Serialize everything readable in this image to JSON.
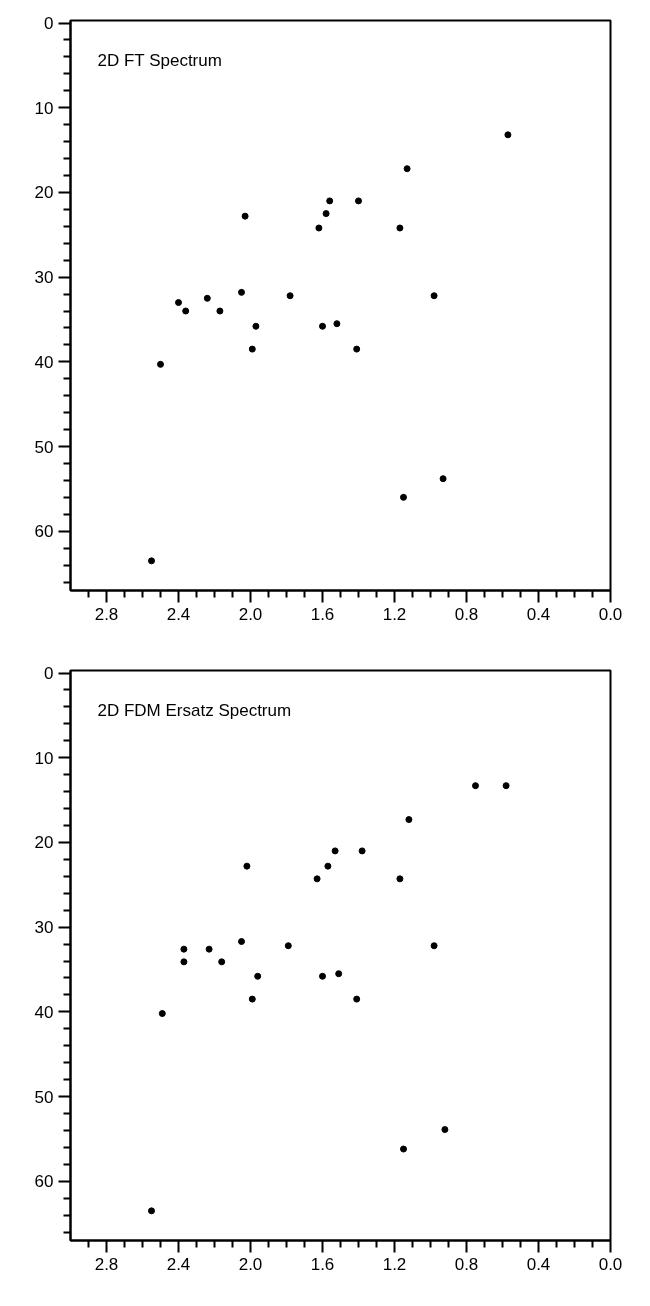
{
  "chart_data": [
    {
      "type": "scatter",
      "title": "2D FT Spectrum",
      "marker": "circle",
      "grid": false,
      "xlim": [
        3.0,
        0.0
      ],
      "ylim": [
        67,
        -0.3
      ],
      "xticks": [
        {
          "value": 2.9,
          "label": null
        },
        2.8,
        {
          "value": 2.7,
          "label": null
        },
        {
          "value": 2.6,
          "label": null
        },
        {
          "value": 2.5,
          "label": null
        },
        2.4,
        {
          "value": 2.3,
          "label": null
        },
        {
          "value": 2.2,
          "label": null
        },
        {
          "value": 2.1,
          "label": null
        },
        {
          "value": 2.0,
          "label": "2.0"
        },
        {
          "value": 1.9,
          "label": null
        },
        {
          "value": 1.8,
          "label": null
        },
        {
          "value": 1.7,
          "label": null
        },
        1.6,
        {
          "value": 1.5,
          "label": null
        },
        {
          "value": 1.4,
          "label": null
        },
        {
          "value": 1.3,
          "label": null
        },
        1.2,
        {
          "value": 1.1,
          "label": null
        },
        {
          "value": 1.0,
          "label": null
        },
        {
          "value": 0.9,
          "label": null
        },
        0.8,
        {
          "value": 0.7,
          "label": null
        },
        {
          "value": 0.6,
          "label": null
        },
        {
          "value": 0.5,
          "label": null
        },
        0.4,
        {
          "value": 0.3,
          "label": null
        },
        {
          "value": 0.2,
          "label": null
        },
        {
          "value": 0.1,
          "label": null
        },
        {
          "value": 0.0,
          "label": "0.0"
        }
      ],
      "yticks": [
        0,
        {
          "value": 2,
          "label": null
        },
        {
          "value": 4,
          "label": null
        },
        {
          "value": 6,
          "label": null
        },
        {
          "value": 8,
          "label": null
        },
        10,
        {
          "value": 12,
          "label": null
        },
        {
          "value": 14,
          "label": null
        },
        {
          "value": 16,
          "label": null
        },
        {
          "value": 18,
          "label": null
        },
        20,
        {
          "value": 22,
          "label": null
        },
        {
          "value": 24,
          "label": null
        },
        {
          "value": 26,
          "label": null
        },
        {
          "value": 28,
          "label": null
        },
        30,
        {
          "value": 32,
          "label": null
        },
        {
          "value": 34,
          "label": null
        },
        {
          "value": 36,
          "label": null
        },
        {
          "value": 38,
          "label": null
        },
        40,
        {
          "value": 42,
          "label": null
        },
        {
          "value": 44,
          "label": null
        },
        {
          "value": 46,
          "label": null
        },
        {
          "value": 48,
          "label": null
        },
        50,
        {
          "value": 52,
          "label": null
        },
        {
          "value": 54,
          "label": null
        },
        {
          "value": 56,
          "label": null
        },
        {
          "value": 58,
          "label": null
        },
        60,
        {
          "value": 62,
          "label": null
        },
        {
          "value": 64,
          "label": null
        },
        {
          "value": 66,
          "label": null
        }
      ],
      "series": [
        {
          "color": "#000000",
          "x": [
            0.57,
            1.13,
            1.56,
            1.4,
            2.03,
            1.58,
            1.62,
            1.17,
            2.05,
            1.78,
            2.24,
            2.4,
            2.36,
            2.17,
            0.98,
            1.97,
            1.6,
            1.52,
            1.99,
            1.41,
            2.5,
            1.15,
            0.93,
            2.55
          ],
          "values": [
            13.2,
            17.2,
            21,
            21,
            22.8,
            22.5,
            24.2,
            24.2,
            31.8,
            32.2,
            32.5,
            33,
            34,
            34,
            32.2,
            35.8,
            35.8,
            35.5,
            38.5,
            38.5,
            40.3,
            56,
            53.8,
            63.5
          ]
        }
      ]
    },
    {
      "type": "scatter",
      "title": "2D FDM Ersatz Spectrum",
      "marker": "circle",
      "grid": false,
      "xlim": [
        3.0,
        0.0
      ],
      "ylim": [
        67,
        -0.3
      ],
      "xticks": [
        {
          "value": 2.9,
          "label": null
        },
        2.8,
        {
          "value": 2.7,
          "label": null
        },
        {
          "value": 2.6,
          "label": null
        },
        {
          "value": 2.5,
          "label": null
        },
        2.4,
        {
          "value": 2.3,
          "label": null
        },
        {
          "value": 2.2,
          "label": null
        },
        {
          "value": 2.1,
          "label": null
        },
        {
          "value": 2.0,
          "label": "2.0"
        },
        {
          "value": 1.9,
          "label": null
        },
        {
          "value": 1.8,
          "label": null
        },
        {
          "value": 1.7,
          "label": null
        },
        1.6,
        {
          "value": 1.5,
          "label": null
        },
        {
          "value": 1.4,
          "label": null
        },
        {
          "value": 1.3,
          "label": null
        },
        1.2,
        {
          "value": 1.1,
          "label": null
        },
        {
          "value": 1.0,
          "label": null
        },
        {
          "value": 0.9,
          "label": null
        },
        0.8,
        {
          "value": 0.7,
          "label": null
        },
        {
          "value": 0.6,
          "label": null
        },
        {
          "value": 0.5,
          "label": null
        },
        0.4,
        {
          "value": 0.3,
          "label": null
        },
        {
          "value": 0.2,
          "label": null
        },
        {
          "value": 0.1,
          "label": null
        },
        {
          "value": 0.0,
          "label": "0.0"
        }
      ],
      "yticks": [
        0,
        {
          "value": 2,
          "label": null
        },
        {
          "value": 4,
          "label": null
        },
        {
          "value": 6,
          "label": null
        },
        {
          "value": 8,
          "label": null
        },
        10,
        {
          "value": 12,
          "label": null
        },
        {
          "value": 14,
          "label": null
        },
        {
          "value": 16,
          "label": null
        },
        {
          "value": 18,
          "label": null
        },
        20,
        {
          "value": 22,
          "label": null
        },
        {
          "value": 24,
          "label": null
        },
        {
          "value": 26,
          "label": null
        },
        {
          "value": 28,
          "label": null
        },
        30,
        {
          "value": 32,
          "label": null
        },
        {
          "value": 34,
          "label": null
        },
        {
          "value": 36,
          "label": null
        },
        {
          "value": 38,
          "label": null
        },
        40,
        {
          "value": 42,
          "label": null
        },
        {
          "value": 44,
          "label": null
        },
        {
          "value": 46,
          "label": null
        },
        {
          "value": 48,
          "label": null
        },
        50,
        {
          "value": 52,
          "label": null
        },
        {
          "value": 54,
          "label": null
        },
        {
          "value": 56,
          "label": null
        },
        {
          "value": 58,
          "label": null
        },
        60,
        {
          "value": 62,
          "label": null
        },
        {
          "value": 64,
          "label": null
        },
        {
          "value": 66,
          "label": null
        }
      ],
      "series": [
        {
          "color": "#000000",
          "x": [
            0.75,
            0.58,
            1.12,
            1.53,
            1.38,
            2.02,
            1.57,
            1.63,
            1.17,
            2.05,
            1.79,
            2.37,
            2.23,
            2.37,
            2.16,
            0.98,
            1.96,
            1.6,
            1.51,
            1.99,
            1.41,
            2.49,
            1.15,
            0.92,
            2.55
          ],
          "values": [
            13.3,
            13.3,
            17.3,
            21,
            21,
            22.8,
            22.8,
            24.3,
            24.3,
            31.7,
            32.2,
            32.6,
            32.6,
            34.1,
            34.1,
            32.2,
            35.8,
            35.8,
            35.5,
            38.5,
            38.5,
            40.2,
            56.2,
            53.9,
            63.5
          ]
        }
      ]
    }
  ]
}
